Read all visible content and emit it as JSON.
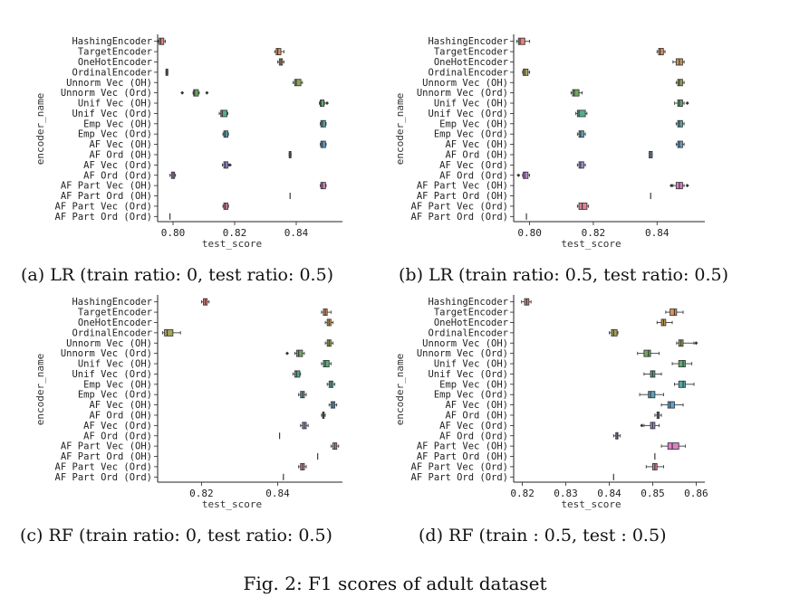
{
  "figure_caption": "Fig. 2: F1 scores of adult dataset",
  "chart_data": [
    {
      "type": "box",
      "caption": "(a) LR (train ratio: 0, test ratio: 0.5)",
      "xlabel": "test_score",
      "ylabel": "encoder_name",
      "xlim": [
        0.795,
        0.855
      ],
      "xticks": [
        0.8,
        0.82,
        0.84
      ],
      "xtick_labels": [
        "0.80",
        "0.82",
        "0.84"
      ],
      "categories": [
        "HashingEncoder",
        "TargetEncoder",
        "OneHotEncoder",
        "OrdinalEncoder",
        "Unnorm Vec (OH)",
        "Unnorm Vec (Ord)",
        "Unif Vec (OH)",
        "Unif Vec (Ord)",
        "Emp Vec (OH)",
        "Emp Vec (Ord)",
        "AF Vec (OH)",
        "AF Ord (OH)",
        "AF Vec (Ord)",
        "AF Ord (Ord)",
        "AF Part Vec (OH)",
        "AF Part Ord (OH)",
        "AF Part Vec (Ord)",
        "AF Part Ord (Ord)"
      ],
      "boxes": [
        {
          "q1": 0.7955,
          "median": 0.796,
          "q3": 0.797,
          "wlo": 0.7952,
          "whi": 0.7975,
          "outliers": []
        },
        {
          "q1": 0.8335,
          "median": 0.834,
          "q3": 0.835,
          "wlo": 0.833,
          "whi": 0.836,
          "outliers": []
        },
        {
          "q1": 0.8345,
          "median": 0.835,
          "q3": 0.8355,
          "wlo": 0.834,
          "whi": 0.836,
          "outliers": []
        },
        {
          "q1": 0.7977,
          "median": 0.798,
          "q3": 0.7983,
          "wlo": 0.7977,
          "whi": 0.7983,
          "outliers": []
        },
        {
          "q1": 0.8395,
          "median": 0.84,
          "q3": 0.8415,
          "wlo": 0.839,
          "whi": 0.842,
          "outliers": []
        },
        {
          "q1": 0.8067,
          "median": 0.807,
          "q3": 0.8082,
          "wlo": 0.8065,
          "whi": 0.8085,
          "outliers": [
            0.803,
            0.811
          ]
        },
        {
          "q1": 0.8478,
          "median": 0.848,
          "q3": 0.849,
          "wlo": 0.8475,
          "whi": 0.8492,
          "outliers": [
            0.85
          ]
        },
        {
          "q1": 0.8155,
          "median": 0.816,
          "q3": 0.8175,
          "wlo": 0.815,
          "whi": 0.8178,
          "outliers": []
        },
        {
          "q1": 0.848,
          "median": 0.8485,
          "q3": 0.8495,
          "wlo": 0.8478,
          "whi": 0.8497,
          "outliers": []
        },
        {
          "q1": 0.8165,
          "median": 0.817,
          "q3": 0.8178,
          "wlo": 0.8162,
          "whi": 0.818,
          "outliers": []
        },
        {
          "q1": 0.848,
          "median": 0.8485,
          "q3": 0.8495,
          "wlo": 0.8478,
          "whi": 0.8497,
          "outliers": []
        },
        {
          "q1": 0.8377,
          "median": 0.838,
          "q3": 0.8383,
          "wlo": 0.8377,
          "whi": 0.8383,
          "outliers": []
        },
        {
          "q1": 0.8165,
          "median": 0.817,
          "q3": 0.8178,
          "wlo": 0.816,
          "whi": 0.818,
          "outliers": [
            0.8185
          ]
        },
        {
          "q1": 0.7995,
          "median": 0.8,
          "q3": 0.8005,
          "wlo": 0.799,
          "whi": 0.8008,
          "outliers": []
        },
        {
          "q1": 0.848,
          "median": 0.8485,
          "q3": 0.8495,
          "wlo": 0.8478,
          "whi": 0.8497,
          "outliers": []
        },
        {
          "q1": 0.838,
          "median": 0.838,
          "q3": 0.838,
          "wlo": 0.838,
          "whi": 0.838,
          "outliers": []
        },
        {
          "q1": 0.8165,
          "median": 0.817,
          "q3": 0.8178,
          "wlo": 0.8162,
          "whi": 0.818,
          "outliers": []
        },
        {
          "q1": 0.799,
          "median": 0.799,
          "q3": 0.799,
          "wlo": 0.799,
          "whi": 0.799,
          "outliers": []
        }
      ]
    },
    {
      "type": "box",
      "caption": "(b) LR (train ratio: 0.5, test ratio: 0.5)",
      "xlabel": "test_score",
      "ylabel": "encoder_name",
      "xlim": [
        0.795,
        0.855
      ],
      "xticks": [
        0.8,
        0.82,
        0.84
      ],
      "xtick_labels": [
        "0.80",
        "0.82",
        "0.84"
      ],
      "categories": [
        "HashingEncoder",
        "TargetEncoder",
        "OneHotEncoder",
        "OrdinalEncoder",
        "Unnorm Vec (OH)",
        "Unnorm Vec (Ord)",
        "Unif Vec (OH)",
        "Unif Vec (Ord)",
        "Emp Vec (OH)",
        "Emp Vec (Ord)",
        "AF Vec (OH)",
        "AF Ord (OH)",
        "AF Vec (Ord)",
        "AF Ord (Ord)",
        "AF Part Vec (OH)",
        "AF Part Ord (OH)",
        "AF Part Vec (Ord)",
        "AF Part Ord (Ord)"
      ],
      "boxes": [
        {
          "q1": 0.7965,
          "median": 0.797,
          "q3": 0.7985,
          "wlo": 0.796,
          "whi": 0.8,
          "outliers": []
        },
        {
          "q1": 0.8405,
          "median": 0.841,
          "q3": 0.842,
          "wlo": 0.84,
          "whi": 0.8425,
          "outliers": []
        },
        {
          "q1": 0.846,
          "median": 0.847,
          "q3": 0.848,
          "wlo": 0.845,
          "whi": 0.8485,
          "outliers": []
        },
        {
          "q1": 0.798,
          "median": 0.7985,
          "q3": 0.7995,
          "wlo": 0.7978,
          "whi": 0.8,
          "outliers": []
        },
        {
          "q1": 0.8465,
          "median": 0.847,
          "q3": 0.848,
          "wlo": 0.846,
          "whi": 0.8485,
          "outliers": []
        },
        {
          "q1": 0.8135,
          "median": 0.814,
          "q3": 0.8155,
          "wlo": 0.813,
          "whi": 0.8165,
          "outliers": []
        },
        {
          "q1": 0.8465,
          "median": 0.847,
          "q3": 0.848,
          "wlo": 0.8455,
          "whi": 0.8485,
          "outliers": [
            0.8495
          ]
        },
        {
          "q1": 0.815,
          "median": 0.8155,
          "q3": 0.8175,
          "wlo": 0.8145,
          "whi": 0.818,
          "outliers": []
        },
        {
          "q1": 0.8465,
          "median": 0.847,
          "q3": 0.848,
          "wlo": 0.846,
          "whi": 0.8485,
          "outliers": []
        },
        {
          "q1": 0.8155,
          "median": 0.816,
          "q3": 0.817,
          "wlo": 0.815,
          "whi": 0.8175,
          "outliers": []
        },
        {
          "q1": 0.8465,
          "median": 0.847,
          "q3": 0.848,
          "wlo": 0.846,
          "whi": 0.8485,
          "outliers": []
        },
        {
          "q1": 0.8375,
          "median": 0.838,
          "q3": 0.8385,
          "wlo": 0.8375,
          "whi": 0.8385,
          "outliers": []
        },
        {
          "q1": 0.8155,
          "median": 0.816,
          "q3": 0.817,
          "wlo": 0.815,
          "whi": 0.8175,
          "outliers": []
        },
        {
          "q1": 0.798,
          "median": 0.7985,
          "q3": 0.7995,
          "wlo": 0.7978,
          "whi": 0.8,
          "outliers": [
            0.7965
          ]
        },
        {
          "q1": 0.846,
          "median": 0.847,
          "q3": 0.848,
          "wlo": 0.845,
          "whi": 0.8485,
          "outliers": [
            0.8445,
            0.8495
          ]
        },
        {
          "q1": 0.838,
          "median": 0.838,
          "q3": 0.838,
          "wlo": 0.838,
          "whi": 0.838,
          "outliers": []
        },
        {
          "q1": 0.8155,
          "median": 0.8165,
          "q3": 0.818,
          "wlo": 0.815,
          "whi": 0.8185,
          "outliers": []
        },
        {
          "q1": 0.799,
          "median": 0.799,
          "q3": 0.799,
          "wlo": 0.799,
          "whi": 0.799,
          "outliers": []
        }
      ]
    },
    {
      "type": "box",
      "caption": "(c) RF (train ratio: 0, test ratio: 0.5)",
      "xlabel": "test_score",
      "ylabel": "encoder_name",
      "xlim": [
        0.8085,
        0.857
      ],
      "xticks": [
        0.82,
        0.84
      ],
      "xtick_labels": [
        "0.82",
        "0.84"
      ],
      "categories": [
        "HashingEncoder",
        "TargetEncoder",
        "OneHotEncoder",
        "OrdinalEncoder",
        "Unnorm Vec (OH)",
        "Unnorm Vec (Ord)",
        "Unif Vec (OH)",
        "Unif Vec (Ord)",
        "Emp Vec (OH)",
        "Emp Vec (Ord)",
        "AF Vec (OH)",
        "AF Ord (OH)",
        "AF Vec (Ord)",
        "AF Ord (Ord)",
        "AF Part Vec (OH)",
        "AF Part Ord (OH)",
        "AF Part Vec (Ord)",
        "AF Part Ord (Ord)"
      ],
      "boxes": [
        {
          "q1": 0.8205,
          "median": 0.821,
          "q3": 0.8215,
          "wlo": 0.82,
          "whi": 0.822,
          "outliers": []
        },
        {
          "q1": 0.852,
          "median": 0.8525,
          "q3": 0.853,
          "wlo": 0.8515,
          "whi": 0.854,
          "outliers": []
        },
        {
          "q1": 0.853,
          "median": 0.8535,
          "q3": 0.854,
          "wlo": 0.8525,
          "whi": 0.8545,
          "outliers": []
        },
        {
          "q1": 0.8103,
          "median": 0.811,
          "q3": 0.8125,
          "wlo": 0.8098,
          "whi": 0.8145,
          "outliers": []
        },
        {
          "q1": 0.853,
          "median": 0.8535,
          "q3": 0.854,
          "wlo": 0.8525,
          "whi": 0.8545,
          "outliers": []
        },
        {
          "q1": 0.845,
          "median": 0.8455,
          "q3": 0.8465,
          "wlo": 0.8445,
          "whi": 0.847,
          "outliers": [
            0.8425
          ]
        },
        {
          "q1": 0.852,
          "median": 0.8525,
          "q3": 0.8535,
          "wlo": 0.8515,
          "whi": 0.854,
          "outliers": []
        },
        {
          "q1": 0.8445,
          "median": 0.845,
          "q3": 0.8458,
          "wlo": 0.844,
          "whi": 0.846,
          "outliers": []
        },
        {
          "q1": 0.8535,
          "median": 0.854,
          "q3": 0.8545,
          "wlo": 0.853,
          "whi": 0.855,
          "outliers": []
        },
        {
          "q1": 0.846,
          "median": 0.8465,
          "q3": 0.847,
          "wlo": 0.8455,
          "whi": 0.8475,
          "outliers": []
        },
        {
          "q1": 0.854,
          "median": 0.8545,
          "q3": 0.855,
          "wlo": 0.8535,
          "whi": 0.8555,
          "outliers": []
        },
        {
          "q1": 0.8518,
          "median": 0.852,
          "q3": 0.8522,
          "wlo": 0.8515,
          "whi": 0.8525,
          "outliers": []
        },
        {
          "q1": 0.8465,
          "median": 0.847,
          "q3": 0.8475,
          "wlo": 0.846,
          "whi": 0.848,
          "outliers": []
        },
        {
          "q1": 0.8405,
          "median": 0.8405,
          "q3": 0.8405,
          "wlo": 0.8405,
          "whi": 0.8405,
          "outliers": []
        },
        {
          "q1": 0.8545,
          "median": 0.855,
          "q3": 0.8555,
          "wlo": 0.854,
          "whi": 0.856,
          "outliers": []
        },
        {
          "q1": 0.8505,
          "median": 0.8505,
          "q3": 0.8505,
          "wlo": 0.8505,
          "whi": 0.8505,
          "outliers": []
        },
        {
          "q1": 0.846,
          "median": 0.8465,
          "q3": 0.847,
          "wlo": 0.8455,
          "whi": 0.8475,
          "outliers": []
        },
        {
          "q1": 0.8415,
          "median": 0.8415,
          "q3": 0.8415,
          "wlo": 0.8415,
          "whi": 0.8415,
          "outliers": []
        }
      ]
    },
    {
      "type": "box",
      "caption": "(d) RF (train : 0.5, test : 0.5)",
      "xlabel": "test_score",
      "ylabel": "encoder_name",
      "xlim": [
        0.818,
        0.862
      ],
      "xticks": [
        0.82,
        0.83,
        0.84,
        0.85,
        0.86
      ],
      "xtick_labels": [
        "0.82",
        "0.83",
        "0.84",
        "0.85",
        "0.86"
      ],
      "categories": [
        "HashingEncoder",
        "TargetEncoder",
        "OneHotEncoder",
        "OrdinalEncoder",
        "Unnorm Vec (OH)",
        "Unnorm Vec (Ord)",
        "Unif Vec (OH)",
        "Unif Vec (Ord)",
        "Emp Vec (OH)",
        "Emp Vec (Ord)",
        "AF Vec (OH)",
        "AF Ord (OH)",
        "AF Vec (Ord)",
        "AF Ord (Ord)",
        "AF Part Vec (OH)",
        "AF Part Ord (OH)",
        "AF Part Vec (Ord)",
        "AF Part Ord (Ord)"
      ],
      "boxes": [
        {
          "q1": 0.8205,
          "median": 0.821,
          "q3": 0.8215,
          "wlo": 0.8198,
          "whi": 0.822,
          "outliers": []
        },
        {
          "q1": 0.854,
          "median": 0.855,
          "q3": 0.8555,
          "wlo": 0.853,
          "whi": 0.857,
          "outliers": []
        },
        {
          "q1": 0.852,
          "median": 0.8525,
          "q3": 0.853,
          "wlo": 0.851,
          "whi": 0.8545,
          "outliers": []
        },
        {
          "q1": 0.8405,
          "median": 0.841,
          "q3": 0.8418,
          "wlo": 0.84,
          "whi": 0.842,
          "outliers": []
        },
        {
          "q1": 0.856,
          "median": 0.8565,
          "q3": 0.857,
          "wlo": 0.8555,
          "whi": 0.8595,
          "outliers": [
            0.86
          ]
        },
        {
          "q1": 0.848,
          "median": 0.849,
          "q3": 0.8495,
          "wlo": 0.8465,
          "whi": 0.8515,
          "outliers": []
        },
        {
          "q1": 0.856,
          "median": 0.857,
          "q3": 0.8575,
          "wlo": 0.8545,
          "whi": 0.859,
          "outliers": []
        },
        {
          "q1": 0.8495,
          "median": 0.85,
          "q3": 0.8505,
          "wlo": 0.848,
          "whi": 0.852,
          "outliers": []
        },
        {
          "q1": 0.856,
          "median": 0.857,
          "q3": 0.8575,
          "wlo": 0.855,
          "whi": 0.8595,
          "outliers": []
        },
        {
          "q1": 0.849,
          "median": 0.8495,
          "q3": 0.8505,
          "wlo": 0.847,
          "whi": 0.8525,
          "outliers": []
        },
        {
          "q1": 0.8535,
          "median": 0.854,
          "q3": 0.855,
          "wlo": 0.852,
          "whi": 0.857,
          "outliers": []
        },
        {
          "q1": 0.851,
          "median": 0.8512,
          "q3": 0.8515,
          "wlo": 0.8505,
          "whi": 0.852,
          "outliers": []
        },
        {
          "q1": 0.8495,
          "median": 0.85,
          "q3": 0.8505,
          "wlo": 0.848,
          "whi": 0.8515,
          "outliers": [
            0.8475
          ]
        },
        {
          "q1": 0.8415,
          "median": 0.8418,
          "q3": 0.842,
          "wlo": 0.841,
          "whi": 0.8425,
          "outliers": []
        },
        {
          "q1": 0.8535,
          "median": 0.8545,
          "q3": 0.856,
          "wlo": 0.852,
          "whi": 0.8575,
          "outliers": []
        },
        {
          "q1": 0.8505,
          "median": 0.8505,
          "q3": 0.8505,
          "wlo": 0.8505,
          "whi": 0.8505,
          "outliers": []
        },
        {
          "q1": 0.85,
          "median": 0.8505,
          "q3": 0.851,
          "wlo": 0.8485,
          "whi": 0.8525,
          "outliers": []
        },
        {
          "q1": 0.841,
          "median": 0.841,
          "q3": 0.841,
          "wlo": 0.841,
          "whi": 0.841,
          "outliers": []
        }
      ]
    }
  ],
  "palette": [
    "#e8817a",
    "#e6925c",
    "#c79a55",
    "#a6a55a",
    "#8ea653",
    "#6ea960",
    "#5cad76",
    "#55ad93",
    "#54aaa7",
    "#56a8bb",
    "#5ba4d0",
    "#7d9de0",
    "#a48fe0",
    "#c686e0",
    "#df80c9",
    "#e680ad",
    "#e58095",
    "#e8817a"
  ]
}
